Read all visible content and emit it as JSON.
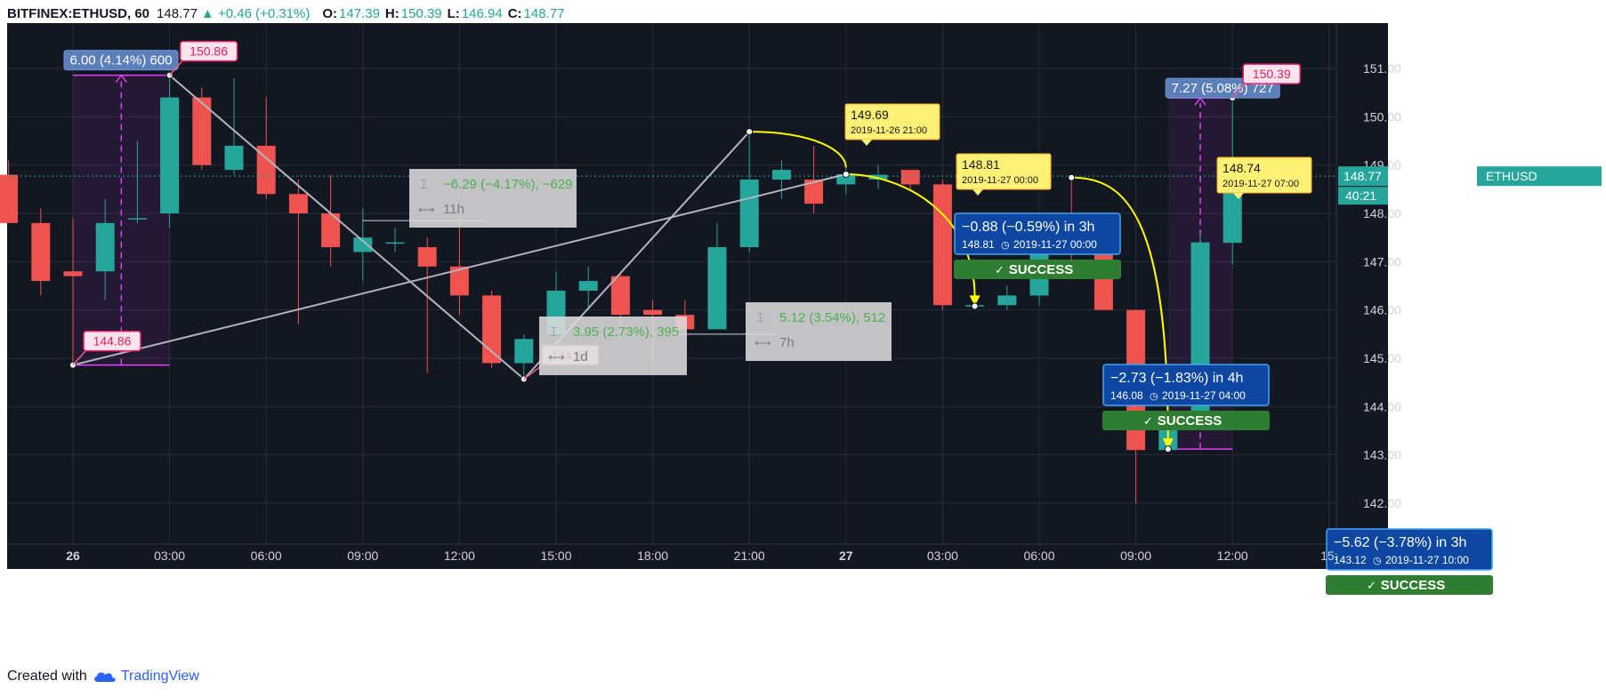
{
  "header": {
    "symbol": "BITFINEX:ETHUSD, 60",
    "last": "148.77",
    "change": "+0.46 (+0.31%)",
    "o_label": "O:",
    "o": "147.39",
    "h_label": "H:",
    "h": "150.39",
    "l_label": "L:",
    "l": "146.94",
    "c_label": "C:",
    "c": "148.77",
    "up_arrow": "▲"
  },
  "footer": {
    "created_with": "Created with",
    "brand": "TradingView",
    "logo_icon": "tradingview-cloud-icon"
  },
  "colors": {
    "background": "#131722",
    "grid": "#2a2e39",
    "up": "#26a69a",
    "down": "#ef5350",
    "axis_text": "#d1d4dc",
    "magenta": "#e040fb",
    "yellow": "#ffff00",
    "info_blue": "#0d47a1",
    "success_green": "#2e7d32"
  },
  "chart_data": {
    "type": "candlestick",
    "symbol": "ETHUSD",
    "interval": "60",
    "ylim": [
      141.0,
      152.0
    ],
    "y_ticks": [
      "142.00",
      "143.00",
      "144.00",
      "145.00",
      "146.00",
      "147.00",
      "148.00",
      "149.00",
      "150.00",
      "151.00"
    ],
    "x_ticks": [
      {
        "label": "26",
        "bold": true,
        "t": 0
      },
      {
        "label": "03:00",
        "t": 3
      },
      {
        "label": "06:00",
        "t": 6
      },
      {
        "label": "09:00",
        "t": 9
      },
      {
        "label": "12:00",
        "t": 12
      },
      {
        "label": "15:00",
        "t": 15
      },
      {
        "label": "18:00",
        "t": 18
      },
      {
        "label": "21:00",
        "t": 21
      },
      {
        "label": "27",
        "bold": true,
        "t": 24
      },
      {
        "label": "03:00",
        "t": 27
      },
      {
        "label": "06:00",
        "t": 30
      },
      {
        "label": "09:00",
        "t": 33
      },
      {
        "label": "12:00",
        "t": 36
      },
      {
        "label": "15:",
        "t": 39
      }
    ],
    "candles": [
      {
        "t": -2,
        "o": 148.8,
        "h": 149.1,
        "l": 147.8,
        "c": 147.8
      },
      {
        "t": -1,
        "o": 147.8,
        "h": 148.1,
        "l": 146.3,
        "c": 146.6
      },
      {
        "t": 0,
        "o": 146.8,
        "h": 147.9,
        "l": 144.86,
        "c": 146.7
      },
      {
        "t": 1,
        "o": 146.8,
        "h": 148.3,
        "l": 146.2,
        "c": 147.8
      },
      {
        "t": 2,
        "o": 147.9,
        "h": 149.5,
        "l": 147.8,
        "c": 147.9
      },
      {
        "t": 3,
        "o": 148.0,
        "h": 150.86,
        "l": 147.7,
        "c": 150.4
      },
      {
        "t": 4,
        "o": 150.4,
        "h": 150.6,
        "l": 148.9,
        "c": 149.0
      },
      {
        "t": 5,
        "o": 148.9,
        "h": 150.8,
        "l": 148.8,
        "c": 149.4
      },
      {
        "t": 6,
        "o": 149.4,
        "h": 150.4,
        "l": 148.3,
        "c": 148.4
      },
      {
        "t": 7,
        "o": 148.4,
        "h": 148.7,
        "l": 145.7,
        "c": 148.0
      },
      {
        "t": 8,
        "o": 148.0,
        "h": 148.8,
        "l": 146.9,
        "c": 147.3
      },
      {
        "t": 9,
        "o": 147.2,
        "h": 148.1,
        "l": 146.6,
        "c": 147.5
      },
      {
        "t": 10,
        "o": 147.4,
        "h": 147.7,
        "l": 147.2,
        "c": 147.4
      },
      {
        "t": 11,
        "o": 147.3,
        "h": 147.5,
        "l": 144.7,
        "c": 146.9
      },
      {
        "t": 12,
        "o": 146.9,
        "h": 147.9,
        "l": 145.9,
        "c": 146.3
      },
      {
        "t": 13,
        "o": 146.3,
        "h": 146.4,
        "l": 144.8,
        "c": 144.9
      },
      {
        "t": 14,
        "o": 144.9,
        "h": 145.5,
        "l": 144.57,
        "c": 145.4
      },
      {
        "t": 15,
        "o": 145.5,
        "h": 146.8,
        "l": 145.3,
        "c": 146.4
      },
      {
        "t": 16,
        "o": 146.4,
        "h": 146.9,
        "l": 146.0,
        "c": 146.6
      },
      {
        "t": 17,
        "o": 146.7,
        "h": 146.8,
        "l": 145.4,
        "c": 145.9
      },
      {
        "t": 18,
        "o": 146.0,
        "h": 146.2,
        "l": 144.8,
        "c": 145.9
      },
      {
        "t": 19,
        "o": 145.9,
        "h": 146.2,
        "l": 145.4,
        "c": 145.6
      },
      {
        "t": 20,
        "o": 145.6,
        "h": 147.8,
        "l": 145.6,
        "c": 147.3
      },
      {
        "t": 21,
        "o": 147.3,
        "h": 149.69,
        "l": 147.2,
        "c": 148.7
      },
      {
        "t": 22,
        "o": 148.7,
        "h": 149.1,
        "l": 148.3,
        "c": 148.9
      },
      {
        "t": 23,
        "o": 148.7,
        "h": 149.4,
        "l": 148.0,
        "c": 148.2
      },
      {
        "t": 24,
        "o": 148.6,
        "h": 149.0,
        "l": 148.4,
        "c": 148.81
      },
      {
        "t": 25,
        "o": 148.7,
        "h": 149.0,
        "l": 148.5,
        "c": 148.8
      },
      {
        "t": 26,
        "o": 148.9,
        "h": 148.9,
        "l": 148.5,
        "c": 148.6
      },
      {
        "t": 27,
        "o": 148.6,
        "h": 148.7,
        "l": 146.0,
        "c": 146.1
      },
      {
        "t": 28,
        "o": 146.1,
        "h": 146.6,
        "l": 146.0,
        "c": 146.1
      },
      {
        "t": 29,
        "o": 146.1,
        "h": 146.5,
        "l": 146.0,
        "c": 146.3
      },
      {
        "t": 30,
        "o": 146.3,
        "h": 147.9,
        "l": 146.1,
        "c": 147.8
      },
      {
        "t": 31,
        "o": 147.8,
        "h": 148.74,
        "l": 146.8,
        "c": 147.2
      },
      {
        "t": 32,
        "o": 147.2,
        "h": 147.6,
        "l": 146.0,
        "c": 146.0
      },
      {
        "t": 33,
        "o": 146.0,
        "h": 146.0,
        "l": 142.0,
        "c": 143.1
      },
      {
        "t": 34,
        "o": 143.1,
        "h": 143.7,
        "l": 143.12,
        "c": 143.7
      },
      {
        "t": 35,
        "o": 143.7,
        "h": 147.6,
        "l": 143.6,
        "c": 147.4
      },
      {
        "t": 36,
        "o": 147.39,
        "h": 150.39,
        "l": 146.94,
        "c": 148.77
      }
    ],
    "last_price_label": "ETHUSD",
    "last_price": "148.77",
    "countdown": "40:21",
    "annotations": {
      "range1": {
        "text": "6.00 (4.14%) 600",
        "t0": 0,
        "t1": 3,
        "p0": 144.86,
        "p1": 150.86
      },
      "range2": {
        "text": "7.27 (5.08%) 727",
        "t0": 34,
        "t1": 36,
        "p0": 143.12,
        "p1": 150.39
      },
      "price_labels": [
        {
          "text": "150.86",
          "t": 3,
          "p": 150.86
        },
        {
          "text": "144.86",
          "t": 0,
          "p": 144.86
        },
        {
          "text": "144.57",
          "t": 14,
          "p": 144.57
        },
        {
          "text": "150.39",
          "t": 36,
          "p": 150.39
        }
      ],
      "measure_boxes": [
        {
          "line1": "−6.29 (−4.17%), −629",
          "line2": "11h"
        },
        {
          "line1": "3.95 (2.73%), 395",
          "line2": "1d"
        },
        {
          "line1": "5.12 (3.54%), 512",
          "line2": "7h"
        }
      ],
      "yellow_labels": [
        {
          "price": "149.69",
          "date": "2019-11-26 21:00",
          "t": 21,
          "p": 149.69
        },
        {
          "price": "148.81",
          "date": "2019-11-27 00:00",
          "t": 24,
          "p": 148.81
        },
        {
          "price": "148.74",
          "date": "2019-11-27 07:00",
          "t": 31,
          "p": 148.74
        }
      ],
      "forecasts": [
        {
          "title": "−0.88 (−0.59%) in 3h",
          "price": "148.81",
          "date": "2019-11-27  00:00",
          "status": "SUCCESS"
        },
        {
          "title": "−2.73 (−1.83%) in 4h",
          "price": "146.08",
          "date": "2019-11-27  04:00",
          "status": "SUCCESS"
        },
        {
          "title": "−5.62 (−3.78%) in 3h",
          "price": "143.12",
          "date": "2019-11-27  10:00",
          "status": "SUCCESS"
        }
      ],
      "forecast_targets": [
        {
          "from_t": 24,
          "from_p": 148.81,
          "to_t": 28,
          "to_p": 146.08
        },
        {
          "from_t": 31,
          "from_p": 148.74,
          "to_t": 34,
          "to_p": 143.12
        }
      ],
      "success_mark": "✓"
    }
  }
}
